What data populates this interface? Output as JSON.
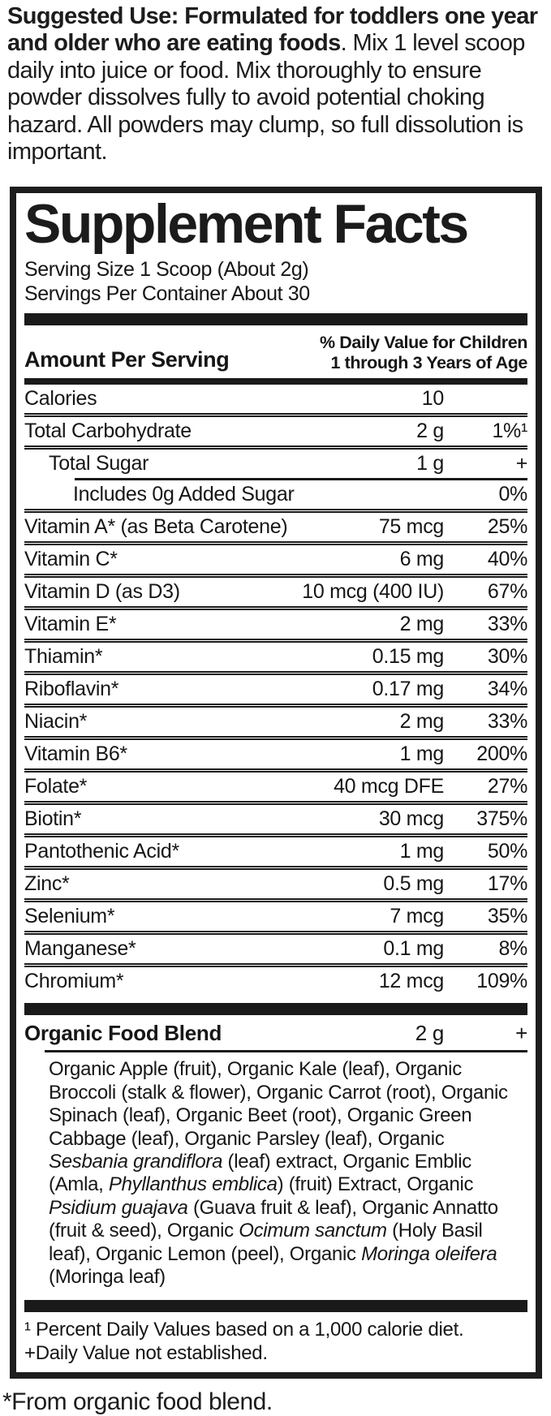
{
  "suggested_use": {
    "segments": [
      {
        "text": "Suggested Use: Formulated for toddlers one year and older who are eating foods",
        "bold": true
      },
      {
        "text": ". Mix 1 level scoop daily into juice or food. Mix thoroughly to ensure powder dissolves fully to avoid potential choking hazard. All powders may clump, so full dissolution is important.",
        "bold": false
      }
    ]
  },
  "panel": {
    "title": "Supplement Facts",
    "serving_size": "Serving Size 1 Scoop (About 2g)",
    "servings_per_container": "Servings Per Container About 30",
    "columns": {
      "amount_header": "Amount Per Serving",
      "dv_header_line1": "% Daily Value for Children",
      "dv_header_line2": "1 through 3 Years of Age"
    },
    "rows": [
      {
        "name": "Calories",
        "amount": "10",
        "dv": "",
        "indent": 0
      },
      {
        "name": "Total Carbohydrate",
        "amount": "2 g",
        "dv": "1%¹",
        "indent": 0
      },
      {
        "name": "Total Sugar",
        "amount": "1 g",
        "dv": "+",
        "indent": 1
      },
      {
        "name": "Includes 0g Added Sugar",
        "amount": "",
        "dv": "0%",
        "indent": 2,
        "rule_indent": true
      },
      {
        "name": "Vitamin A* (as Beta Carotene)",
        "amount": "75 mcg",
        "dv": "25%",
        "indent": 0
      },
      {
        "name": "Vitamin C*",
        "amount": "6 mg",
        "dv": "40%",
        "indent": 0
      },
      {
        "name": "Vitamin D (as D3)",
        "amount": "10 mcg (400 IU)",
        "dv": "67%",
        "indent": 0
      },
      {
        "name": "Vitamin E*",
        "amount": "2 mg",
        "dv": "33%",
        "indent": 0
      },
      {
        "name": "Thiamin*",
        "amount": "0.15 mg",
        "dv": "30%",
        "indent": 0
      },
      {
        "name": "Riboflavin*",
        "amount": "0.17 mg",
        "dv": "34%",
        "indent": 0
      },
      {
        "name": "Niacin*",
        "amount": "2 mg",
        "dv": "33%",
        "indent": 0
      },
      {
        "name": "Vitamin B6*",
        "amount": "1 mg",
        "dv": "200%",
        "indent": 0
      },
      {
        "name": "Folate*",
        "amount": "40 mcg DFE",
        "dv": "27%",
        "indent": 0
      },
      {
        "name": "Biotin*",
        "amount": "30 mcg",
        "dv": "375%",
        "indent": 0
      },
      {
        "name": "Pantothenic Acid*",
        "amount": "1 mg",
        "dv": "50%",
        "indent": 0
      },
      {
        "name": "Zinc*",
        "amount": "0.5 mg",
        "dv": "17%",
        "indent": 0
      },
      {
        "name": "Selenium*",
        "amount": "7 mcg",
        "dv": "35%",
        "indent": 0
      },
      {
        "name": "Manganese*",
        "amount": "0.1 mg",
        "dv": "8%",
        "indent": 0
      },
      {
        "name": "Chromium*",
        "amount": "12 mcg",
        "dv": "109%",
        "indent": 0
      }
    ],
    "blend": {
      "name": "Organic Food Blend",
      "amount": "2 g",
      "dv": "+",
      "ingredients": [
        {
          "text": "Organic Apple (fruit), Organic Kale (leaf), Organic Broccoli (stalk & flower), Organic Carrot (root), Organic Spinach (leaf), Organic Beet (root), Organic Green Cabbage (leaf), Organic Parsley (leaf), Organic ",
          "italic": false
        },
        {
          "text": "Sesbania grandiflora",
          "italic": true
        },
        {
          "text": " (leaf) extract, Organic Emblic (Amla, ",
          "italic": false
        },
        {
          "text": "Phyllanthus emblica",
          "italic": true
        },
        {
          "text": ") (fruit) Extract, Organic ",
          "italic": false
        },
        {
          "text": "Psidium guajava",
          "italic": true
        },
        {
          "text": " (Guava fruit & leaf), Organic Annatto (fruit & seed), Organic ",
          "italic": false
        },
        {
          "text": "Ocimum sanctum",
          "italic": true
        },
        {
          "text": " (Holy Basil leaf), Organic Lemon (peel), Organic ",
          "italic": false
        },
        {
          "text": "Moringa oleifera",
          "italic": true
        },
        {
          "text": " (Moringa leaf)",
          "italic": false
        }
      ]
    },
    "footnotes": [
      "¹ Percent Daily Values based on a 1,000 calorie diet.",
      "+Daily Value not established."
    ]
  },
  "footer_note": "*From organic food blend.",
  "colors": {
    "text": "#161616",
    "rule": "#1a1a1a",
    "background": "#ffffff"
  }
}
